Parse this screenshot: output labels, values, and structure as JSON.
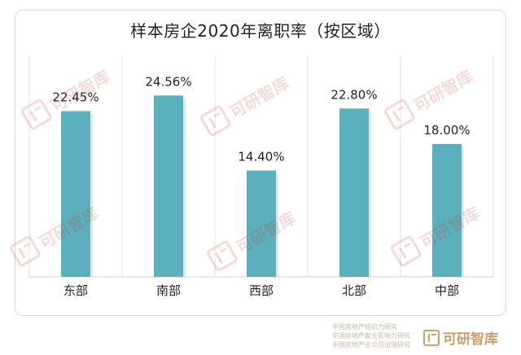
{
  "chart_data": {
    "type": "bar",
    "title": "样本房企2020年离职率（按区域）",
    "categories": [
      "东部",
      "南部",
      "西部",
      "北部",
      "中部"
    ],
    "values": [
      22.45,
      24.56,
      14.4,
      22.8,
      18.0
    ],
    "data_labels": [
      "22.45%",
      "24.56%",
      "14.40%",
      "22.80%",
      "18.00%"
    ],
    "ylim": [
      0,
      30
    ],
    "grid": true,
    "legend": "none",
    "bar_color": "#5ab0bc",
    "grid_color": "#e3e3e3"
  },
  "watermark": {
    "brand": "可研智库",
    "color": "#c0392b"
  },
  "footer": {
    "lines": [
      "中国房地产组织力研究",
      "中国房地产雇主影响力研究",
      "中国房地产业公司治理研究"
    ],
    "brand": "可研智库",
    "color": "#c9a06a"
  }
}
